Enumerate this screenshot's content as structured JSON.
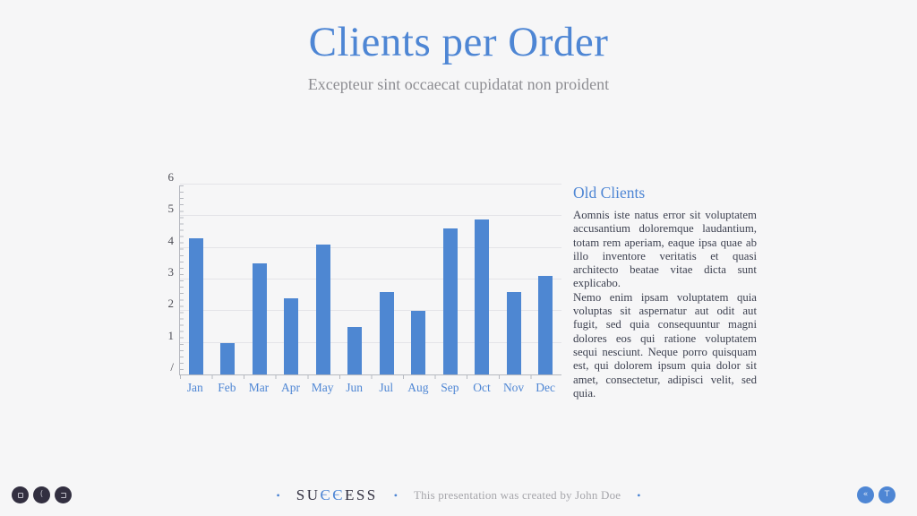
{
  "slide": {
    "title": "Clients per Order",
    "subtitle": "Excepteur sint occaecat cupidatat non proident"
  },
  "chart_data": {
    "type": "bar",
    "title": "",
    "xlabel": "",
    "ylabel": "",
    "categories": [
      "Jan",
      "Feb",
      "Mar",
      "Apr",
      "May",
      "Jun",
      "Jul",
      "Aug",
      "Sep",
      "Oct",
      "Nov",
      "Dec"
    ],
    "values": [
      4.3,
      1.0,
      3.5,
      2.4,
      4.1,
      1.5,
      2.6,
      2.0,
      4.6,
      4.9,
      2.6,
      3.1
    ],
    "ylim": [
      0,
      6
    ],
    "y_tick_labels": [
      "/",
      "1",
      "2",
      "3",
      "4",
      "5",
      "6"
    ],
    "grid": true,
    "legend": false,
    "bar_color": "#4e87d2"
  },
  "text_panel": {
    "heading": "Old Clients",
    "paragraph1": "Aomnis iste natus error sit voluptatem accusantium doloremque laudantium, totam rem aperiam, eaque ipsa quae ab illo inventore veritatis et quasi architecto beatae vitae dicta sunt explicabo.",
    "paragraph2": "Nemo enim ipsam voluptatem quia voluptas sit aspernatur aut odit aut fugit, sed quia consequuntur magni dolores eos qui ratione voluptatem sequi nesciunt. Neque porro quisquam est, qui dolorem ipsum quia dolor sit amet, consectetur, adipisci velit, sed quia."
  },
  "footer": {
    "separator": "•",
    "logo_prefix": "SU",
    "logo_mid": "ЄЄ",
    "logo_suffix": "ESS",
    "credit": "This presentation was created by John Doe"
  },
  "controls": {
    "right": [
      {
        "glyph": "«"
      },
      {
        "glyph": "T"
      }
    ]
  },
  "colors": {
    "background": "#f6f6f7",
    "accent_blue": "#4e86d4",
    "bar_blue": "#4e87d2",
    "dark_button": "#322f40",
    "body_text": "#3d4150",
    "muted_text": "#a6a6ab"
  }
}
